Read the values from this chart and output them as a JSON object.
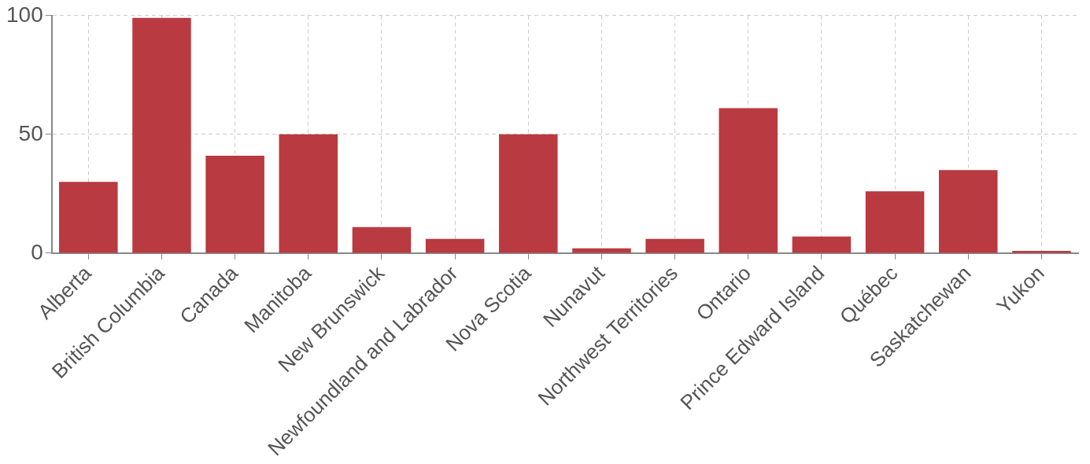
{
  "chart_data": {
    "type": "bar",
    "categories": [
      "Alberta",
      "British Columbia",
      "Canada",
      "Manitoba",
      "New Brunswick",
      "Newfoundland and Labrador",
      "Nova Scotia",
      "Nunavut",
      "Northwest Territories",
      "Ontario",
      "Prince Edward Island",
      "Québec",
      "Saskatchewan",
      "Yukon"
    ],
    "values": [
      30,
      99,
      41,
      50,
      11,
      6,
      50,
      2,
      6,
      61,
      7,
      26,
      35,
      1
    ],
    "color": "#b93a40",
    "ylim": [
      0,
      100
    ],
    "yticks": [
      0,
      50,
      100
    ],
    "grid": true,
    "legend": false
  }
}
